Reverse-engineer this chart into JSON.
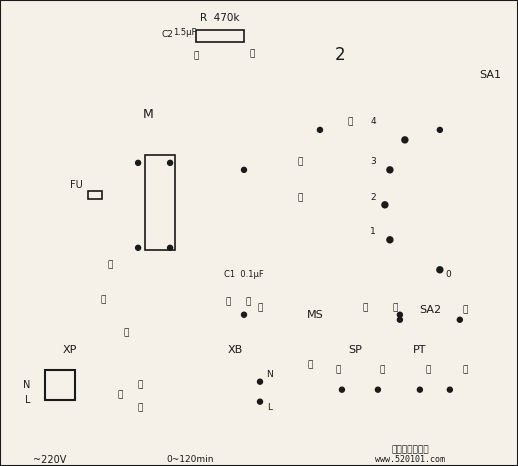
{
  "bg_color": "#f5f0e8",
  "line_color": "#1a1a1a",
  "title": "",
  "figsize": [
    5.18,
    4.66
  ],
  "dpi": 100,
  "watermark_line1": "www.520101.com",
  "circle2_label": "2",
  "sa1_label": "SA1",
  "sa2_label": "SA2",
  "ms_label": "MS",
  "fu_label": "FU",
  "m_label": "M",
  "xp_label": "XP",
  "xb_label": "XB",
  "sp_label": "SP",
  "pt_label": "PT",
  "r_label": "R  470k",
  "c2_label": "C2",
  "cap_label": "1.5μF",
  "c1_label": "C1  0.1μF",
  "voltage_label": "~220V",
  "timer_label": "0~120min"
}
